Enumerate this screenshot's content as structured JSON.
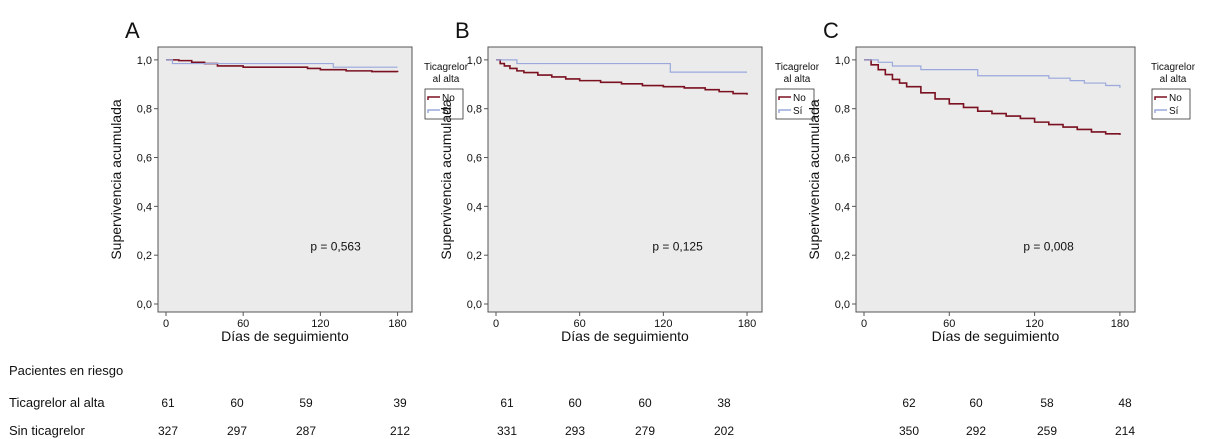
{
  "legend": {
    "title_line1": "Ticagrelor",
    "title_line2": "al alta",
    "items": [
      {
        "label": "No",
        "color": "#7a1020"
      },
      {
        "label": "Sí",
        "color": "#9aa8dc"
      }
    ]
  },
  "chart_data": [
    {
      "type": "line",
      "panel_label": "A",
      "xlabel": "Días de seguimiento",
      "ylabel": "Supervivencia acumulada",
      "xlim": [
        0,
        185
      ],
      "ylim": [
        0,
        1.02
      ],
      "xticks": [
        {
          "v": 0,
          "label": "0"
        },
        {
          "v": 60,
          "label": "60"
        },
        {
          "v": 120,
          "label": "120"
        },
        {
          "v": 180,
          "label": "180"
        }
      ],
      "yticks": [
        {
          "v": 0,
          "label": "0,0"
        },
        {
          "v": 0.2,
          "label": "0,2"
        },
        {
          "v": 0.4,
          "label": "0,4"
        },
        {
          "v": 0.6,
          "label": "0,6"
        },
        {
          "v": 0.8,
          "label": "0,8"
        },
        {
          "v": 1.0,
          "label": "1,0"
        }
      ],
      "annotation": "p = 0,563",
      "series": [
        {
          "name": "No",
          "color": "#7a1020",
          "x": [
            0,
            10,
            20,
            30,
            40,
            60,
            90,
            110,
            120,
            140,
            160,
            180
          ],
          "y": [
            1.0,
            0.997,
            0.99,
            0.985,
            0.975,
            0.97,
            0.97,
            0.965,
            0.96,
            0.955,
            0.952,
            0.95
          ]
        },
        {
          "name": "Sí",
          "color": "#9aa8dc",
          "x": [
            0,
            5,
            40,
            100,
            130,
            180
          ],
          "y": [
            1.0,
            0.985,
            0.985,
            0.985,
            0.97,
            0.97
          ]
        }
      ]
    },
    {
      "type": "line",
      "panel_label": "B",
      "xlabel": "Días de seguimiento",
      "ylabel": "Supervivencia acumulada",
      "xlim": [
        0,
        185
      ],
      "ylim": [
        0,
        1.02
      ],
      "xticks": [
        {
          "v": 0,
          "label": "0"
        },
        {
          "v": 60,
          "label": "60"
        },
        {
          "v": 120,
          "label": "120"
        },
        {
          "v": 180,
          "label": "180"
        }
      ],
      "yticks": [
        {
          "v": 0,
          "label": "0,0"
        },
        {
          "v": 0.2,
          "label": "0,2"
        },
        {
          "v": 0.4,
          "label": "0,4"
        },
        {
          "v": 0.6,
          "label": "0,6"
        },
        {
          "v": 0.8,
          "label": "0,8"
        },
        {
          "v": 1.0,
          "label": "1,0"
        }
      ],
      "annotation": "p = 0,125",
      "series": [
        {
          "name": "No",
          "color": "#7a1020",
          "x": [
            0,
            3,
            6,
            10,
            15,
            20,
            30,
            40,
            50,
            60,
            75,
            90,
            105,
            120,
            135,
            150,
            160,
            170,
            180
          ],
          "y": [
            1.0,
            0.985,
            0.975,
            0.965,
            0.955,
            0.948,
            0.938,
            0.93,
            0.922,
            0.915,
            0.908,
            0.902,
            0.895,
            0.89,
            0.885,
            0.878,
            0.87,
            0.862,
            0.857
          ]
        },
        {
          "name": "Sí",
          "color": "#9aa8dc",
          "x": [
            0,
            15,
            125,
            180
          ],
          "y": [
            1.0,
            0.985,
            0.95,
            0.95
          ]
        }
      ]
    },
    {
      "type": "line",
      "panel_label": "C",
      "xlabel": "Días de seguimiento",
      "ylabel": "Supervivencia acumulada",
      "xlim": [
        0,
        185
      ],
      "ylim": [
        0,
        1.02
      ],
      "xticks": [
        {
          "v": 0,
          "label": "0"
        },
        {
          "v": 60,
          "label": "60"
        },
        {
          "v": 120,
          "label": "120"
        },
        {
          "v": 180,
          "label": "180"
        }
      ],
      "yticks": [
        {
          "v": 0,
          "label": "0,0"
        },
        {
          "v": 0.2,
          "label": "0,2"
        },
        {
          "v": 0.4,
          "label": "0,4"
        },
        {
          "v": 0.6,
          "label": "0,6"
        },
        {
          "v": 0.8,
          "label": "0,8"
        },
        {
          "v": 1.0,
          "label": "1,0"
        }
      ],
      "annotation": "p = 0,008",
      "series": [
        {
          "name": "No",
          "color": "#7a1020",
          "x": [
            0,
            5,
            10,
            15,
            20,
            25,
            30,
            40,
            50,
            60,
            70,
            80,
            90,
            100,
            110,
            120,
            130,
            140,
            150,
            160,
            170,
            180
          ],
          "y": [
            1.0,
            0.98,
            0.96,
            0.94,
            0.92,
            0.905,
            0.89,
            0.865,
            0.84,
            0.82,
            0.805,
            0.79,
            0.78,
            0.77,
            0.76,
            0.745,
            0.735,
            0.725,
            0.715,
            0.705,
            0.697,
            0.693
          ]
        },
        {
          "name": "Sí",
          "color": "#9aa8dc",
          "x": [
            0,
            10,
            20,
            40,
            80,
            110,
            130,
            145,
            155,
            170,
            180
          ],
          "y": [
            1.0,
            0.99,
            0.975,
            0.96,
            0.935,
            0.935,
            0.925,
            0.915,
            0.905,
            0.895,
            0.885
          ]
        }
      ]
    }
  ],
  "risk_table": {
    "title": "Pacientes en riesgo",
    "rows": [
      {
        "label": "Ticagrelor al alta",
        "panels": [
          [
            "61",
            "60",
            "59",
            "39"
          ],
          [
            "61",
            "60",
            "60",
            "38"
          ],
          [
            "62",
            "60",
            "58",
            "48"
          ]
        ]
      },
      {
        "label": "Sin ticagrelor",
        "panels": [
          [
            "327",
            "297",
            "287",
            "212"
          ],
          [
            "331",
            "293",
            "279",
            "202"
          ],
          [
            "350",
            "292",
            "259",
            "214"
          ]
        ]
      }
    ]
  }
}
